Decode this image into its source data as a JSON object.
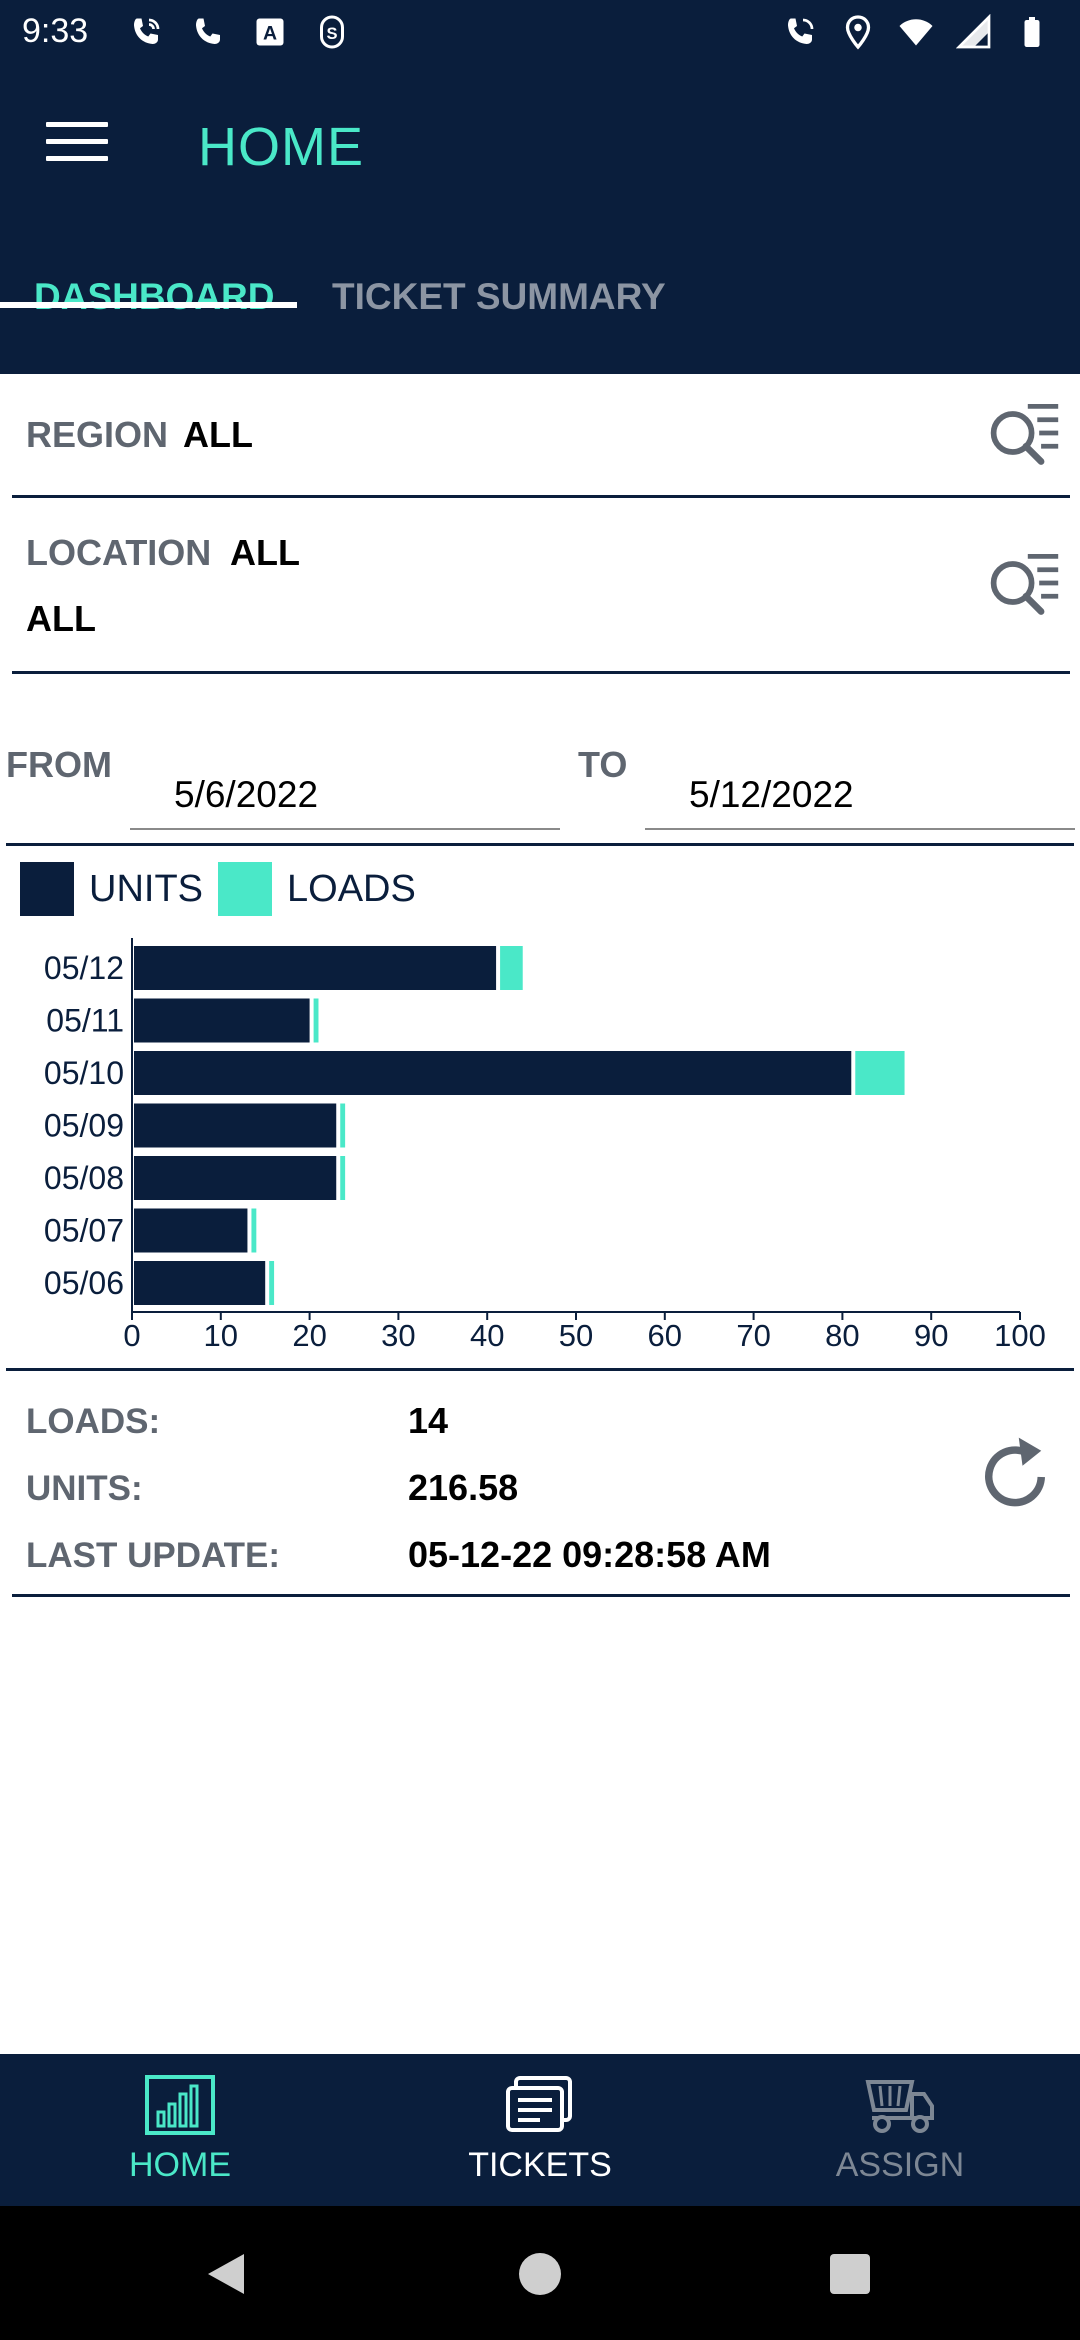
{
  "status_bar": {
    "time": "9:33",
    "icons_left": [
      "wifi-calling-icon",
      "phone-icon",
      "a-box-icon",
      "s-clip-icon"
    ],
    "icons_right": [
      "wifi-calling-icon",
      "location-pin-icon",
      "wifi-icon",
      "signal-icon",
      "battery-icon"
    ]
  },
  "app_bar": {
    "title": "HOME",
    "tabs": [
      {
        "label": "DASHBOARD",
        "active": true
      },
      {
        "label": "TICKET SUMMARY",
        "active": false
      }
    ]
  },
  "filters": {
    "region": {
      "label": "REGION",
      "value": "ALL"
    },
    "location": {
      "label": "LOCATION",
      "value": "ALL",
      "value2": "ALL"
    }
  },
  "dates": {
    "from_label": "FROM",
    "from_value": "5/6/2022",
    "to_label": "TO",
    "to_value": "5/12/2022"
  },
  "colors": {
    "navy": "#0a1e3c",
    "accent": "#4ae8c8",
    "label_gray": "#5f6670"
  },
  "chart_data": {
    "type": "bar",
    "orientation": "horizontal",
    "stacked": true,
    "categories": [
      "05/12",
      "05/11",
      "05/10",
      "05/09",
      "05/08",
      "05/07",
      "05/06"
    ],
    "series": [
      {
        "name": "UNITS",
        "color": "#0a1e3c",
        "values": [
          41,
          20,
          81,
          23,
          23,
          13,
          15
        ]
      },
      {
        "name": "LOADS",
        "color": "#4ae8c8",
        "values": [
          3,
          1,
          6,
          1,
          1,
          1,
          1
        ]
      }
    ],
    "xlim": [
      0,
      100
    ],
    "xticks": [
      "0",
      "10",
      "20",
      "30",
      "40",
      "50",
      "60",
      "70",
      "80",
      "90",
      "100"
    ],
    "legend": "top-left"
  },
  "summary": {
    "loads_label": "LOADS:",
    "loads_value": "14",
    "units_label": "UNITS:",
    "units_value": "216.58",
    "update_label": "LAST UPDATE:",
    "update_value": "05-12-22 09:28:58 AM"
  },
  "bottom_nav": {
    "items": [
      {
        "label": "HOME",
        "icon": "bar-chart-icon",
        "state": "active"
      },
      {
        "label": "TICKETS",
        "icon": "tickets-icon",
        "state": "normal"
      },
      {
        "label": "ASSIGN",
        "icon": "truck-icon",
        "state": "disabled"
      }
    ]
  }
}
